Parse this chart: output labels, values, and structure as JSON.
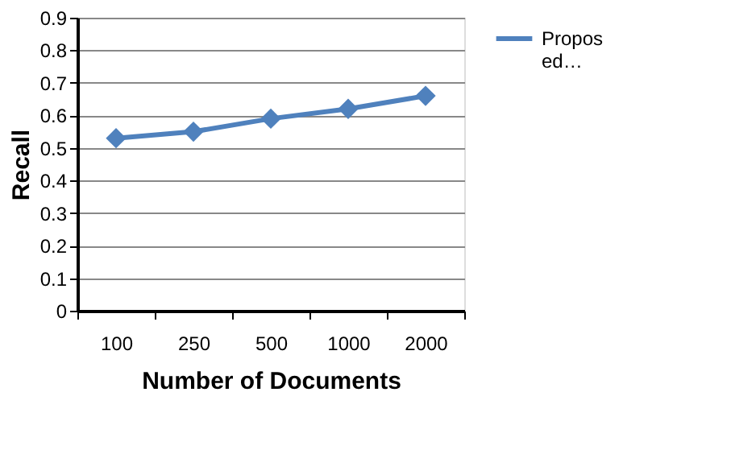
{
  "chart_data": {
    "type": "line",
    "xlabel": "Number of Documents",
    "ylabel": "Recall",
    "categories": [
      "100",
      "250",
      "500",
      "1000",
      "2000"
    ],
    "series": [
      {
        "name": "Proposed…",
        "color": "#4f81bd",
        "values": [
          0.53,
          0.55,
          0.59,
          0.62,
          0.66
        ]
      }
    ],
    "ylim": [
      0,
      0.9
    ],
    "yticks": [
      0,
      0.1,
      0.2,
      0.3,
      0.4,
      0.5,
      0.6,
      0.7,
      0.8,
      0.9
    ],
    "grid": "y",
    "legend": "right",
    "marker": "diamond",
    "line_style": "solid"
  }
}
